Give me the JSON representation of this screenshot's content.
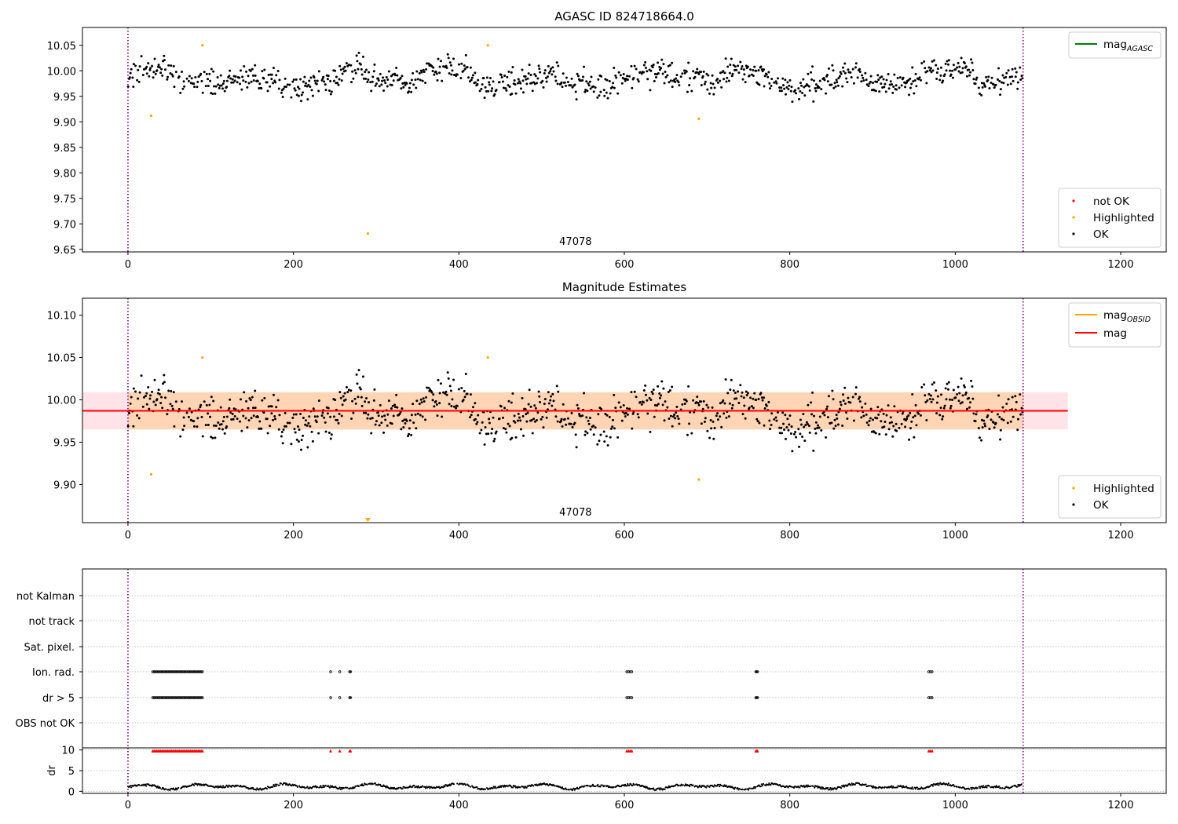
{
  "chart_data": [
    {
      "type": "scatter",
      "title": "AGASC ID 824718664.0",
      "xlim": [
        -55,
        1255
      ],
      "ylim": [
        9.645,
        10.085
      ],
      "xticks": [
        0,
        200,
        400,
        600,
        800,
        1000,
        1200
      ],
      "yticks": [
        10.05,
        10.0,
        9.95,
        9.9,
        9.85,
        9.8,
        9.75,
        9.7,
        9.65
      ],
      "grid": false,
      "vlines": [
        0,
        1082
      ],
      "annotation": "47078",
      "annotation_x": 541,
      "legend_lines": {
        "placement": "top-right",
        "entries": [
          {
            "label": "mag",
            "sub": "AGASC",
            "color": "#008000"
          }
        ]
      },
      "legend_points": {
        "placement": "bottom-right",
        "entries": [
          {
            "label": "not OK",
            "color": "#ff0000"
          },
          {
            "label": "Highlighted",
            "color": "#ffa500"
          },
          {
            "label": "OK",
            "color": "#000000"
          }
        ]
      },
      "series": [
        {
          "name": "OK",
          "color": "#000000",
          "from": "ok_points"
        },
        {
          "name": "Highlighted",
          "color": "#ffa500",
          "x": [
            28,
            90,
            290,
            435,
            690
          ],
          "y": [
            9.912,
            10.05,
            9.681,
            10.05,
            9.906
          ]
        },
        {
          "name": "not OK",
          "color": "#ff0000",
          "x": [],
          "y": []
        }
      ]
    },
    {
      "type": "scatter",
      "title": "Magnitude Estimates",
      "xlim": [
        -55,
        1255
      ],
      "ylim": [
        9.855,
        10.12
      ],
      "xticks": [
        0,
        200,
        400,
        600,
        800,
        1000,
        1200
      ],
      "yticks": [
        10.1,
        10.05,
        10.0,
        9.95,
        9.9
      ],
      "grid": false,
      "vlines": [
        0,
        1082
      ],
      "annotation": "47078",
      "annotation_x": 541,
      "mag_line": {
        "y": 9.987,
        "x": [
          -55,
          1136
        ],
        "band": [
          9.965,
          10.009
        ],
        "color": "#ff0000"
      },
      "mag_obsid": {
        "y": 9.987,
        "x": [
          0,
          1082
        ],
        "band": [
          9.965,
          10.009
        ],
        "color": "#ffa500"
      },
      "legend_lines": {
        "placement": "top-right",
        "entries": [
          {
            "label": "mag",
            "sub": "OBSID",
            "color": "#ffa500"
          },
          {
            "label": "mag",
            "sub": "",
            "color": "#ff0000"
          }
        ]
      },
      "legend_points": {
        "placement": "bottom-right",
        "entries": [
          {
            "label": "Highlighted",
            "color": "#ffa500"
          },
          {
            "label": "OK",
            "color": "#000000"
          }
        ]
      },
      "series": [
        {
          "name": "OK",
          "color": "#000000",
          "from": "ok_points"
        },
        {
          "name": "Highlighted",
          "color": "#ffa500",
          "x": [
            28,
            90,
            435,
            690
          ],
          "y": [
            9.912,
            10.05,
            10.05,
            9.906
          ]
        }
      ],
      "offscale_marker": {
        "x": 290,
        "color": "#ffa500"
      }
    },
    {
      "type": "scatter",
      "title": "",
      "xlim": [
        -55,
        1255
      ],
      "vlines": [
        0,
        1082
      ],
      "flag_rows": [
        "not Kalman",
        "not track",
        "Sat. pixel.",
        "Ion. rad.",
        "dr > 5",
        "OBS not OK"
      ],
      "flag_clusters": {
        "Ion. rad.": [
          [
            30,
            90,
            38
          ],
          [
            245,
            245,
            1
          ],
          [
            256,
            256,
            1
          ],
          [
            268,
            269,
            2
          ],
          [
            603,
            609,
            4
          ],
          [
            759,
            761,
            3
          ],
          [
            968,
            972,
            3
          ]
        ],
        "dr > 5": [
          [
            30,
            90,
            38
          ],
          [
            245,
            245,
            1
          ],
          [
            256,
            256,
            1
          ],
          [
            268,
            269,
            2
          ],
          [
            603,
            609,
            4
          ],
          [
            759,
            761,
            3
          ],
          [
            968,
            972,
            3
          ]
        ]
      },
      "dr_panel": {
        "ylabel": "dr",
        "ylim": [
          -0.5,
          10.5
        ],
        "yticks": [
          0,
          5,
          10
        ],
        "clip_value": 9.8,
        "clipped_clusters": [
          [
            30,
            90,
            38
          ],
          [
            245,
            245,
            1
          ],
          [
            256,
            256,
            1
          ],
          [
            268,
            269,
            2
          ],
          [
            603,
            609,
            4
          ],
          [
            759,
            761,
            3
          ],
          [
            968,
            972,
            3
          ]
        ],
        "clip_color": "#ff0000",
        "trace_color": "#000000"
      }
    }
  ]
}
